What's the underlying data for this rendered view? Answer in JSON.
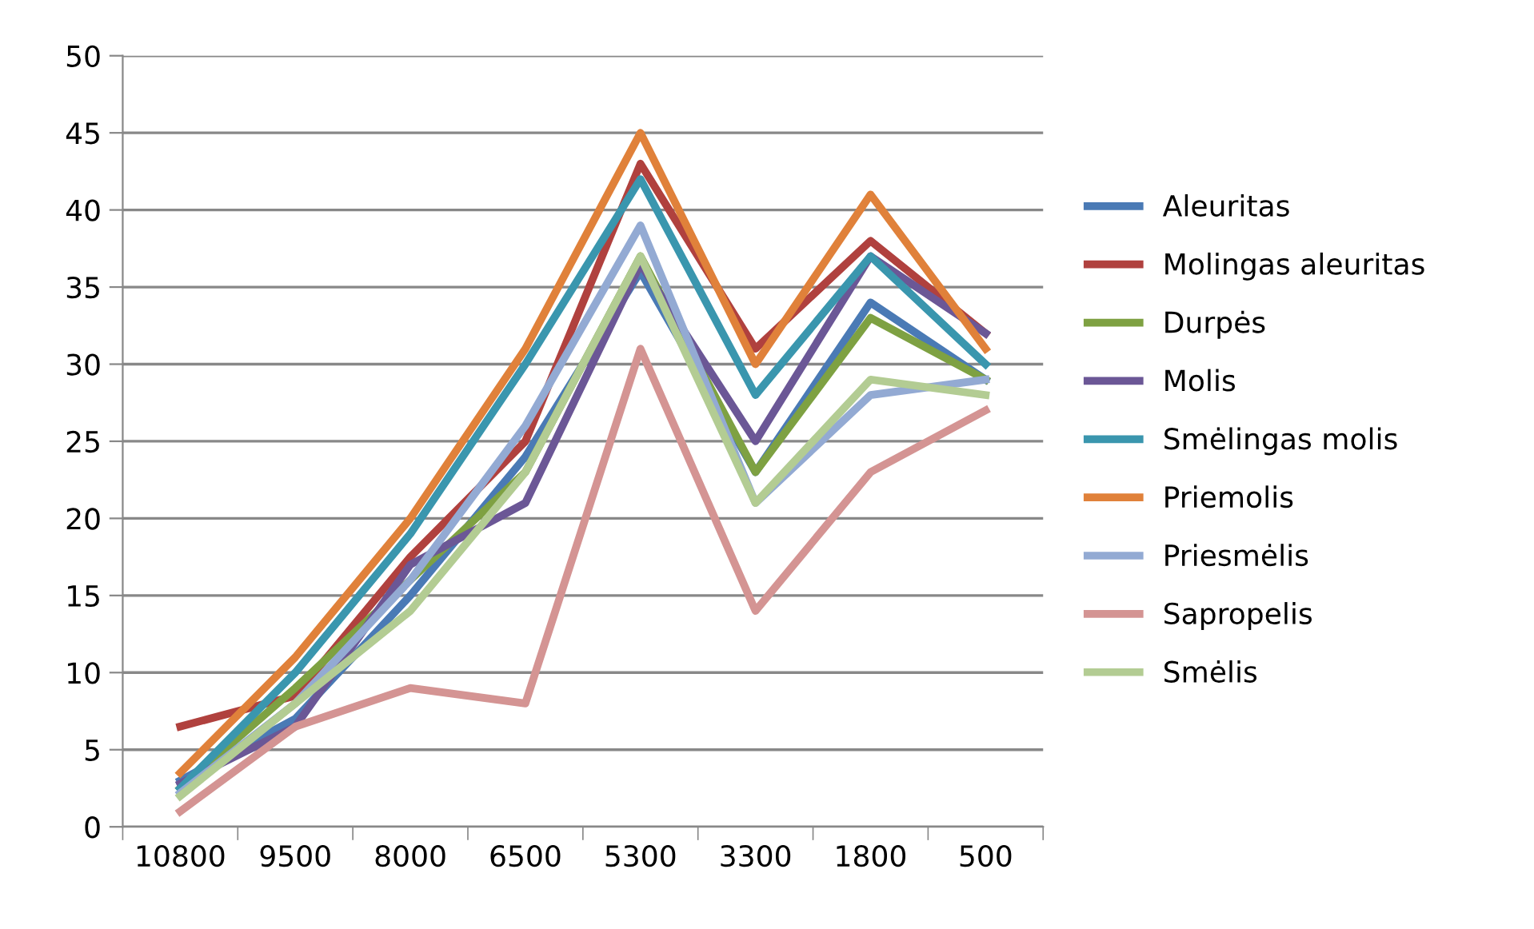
{
  "chart_data": {
    "type": "line",
    "categories": [
      "10800",
      "9500",
      "8000",
      "6500",
      "5300",
      "3300",
      "1800",
      "500"
    ],
    "ylim": [
      0,
      50
    ],
    "yticks": [
      0,
      5,
      10,
      15,
      20,
      25,
      30,
      35,
      40,
      45,
      50
    ],
    "grid": "y",
    "legend": "right",
    "marker": "none",
    "line_style": "solid",
    "series": [
      {
        "name": "Aleuritas",
        "color": "#4a7ab5",
        "values": [
          3,
          7,
          15,
          24,
          36,
          23,
          34,
          29
        ]
      },
      {
        "name": "Molingas aleuritas",
        "color": "#b0413e",
        "values": [
          6.5,
          8.5,
          17.5,
          25,
          43,
          31,
          38,
          32
        ]
      },
      {
        "name": "Durpės",
        "color": "#7ea142",
        "values": [
          2.5,
          9,
          16,
          23,
          37,
          23,
          33,
          29
        ]
      },
      {
        "name": "Molis",
        "color": "#6b5796",
        "values": [
          2.8,
          6.5,
          17,
          21,
          36.5,
          25,
          37,
          32
        ]
      },
      {
        "name": "Smėlingas molis",
        "color": "#3a96ae",
        "values": [
          2.5,
          10,
          19,
          30,
          42,
          28,
          37,
          30
        ]
      },
      {
        "name": "Priemolis",
        "color": "#e0813a",
        "values": [
          3.5,
          11,
          20,
          31,
          45,
          30,
          41,
          31
        ]
      },
      {
        "name": "Priesmėlis",
        "color": "#93aad3",
        "values": [
          2.2,
          8,
          16,
          26,
          39,
          21,
          28,
          29
        ]
      },
      {
        "name": "Sapropelis",
        "color": "#d49493",
        "values": [
          1,
          6.5,
          9,
          8,
          31,
          14,
          23,
          27
        ]
      },
      {
        "name": "Smėlis",
        "color": "#b3cc93",
        "values": [
          2,
          8,
          14,
          23,
          37,
          21,
          29,
          28
        ]
      }
    ]
  }
}
